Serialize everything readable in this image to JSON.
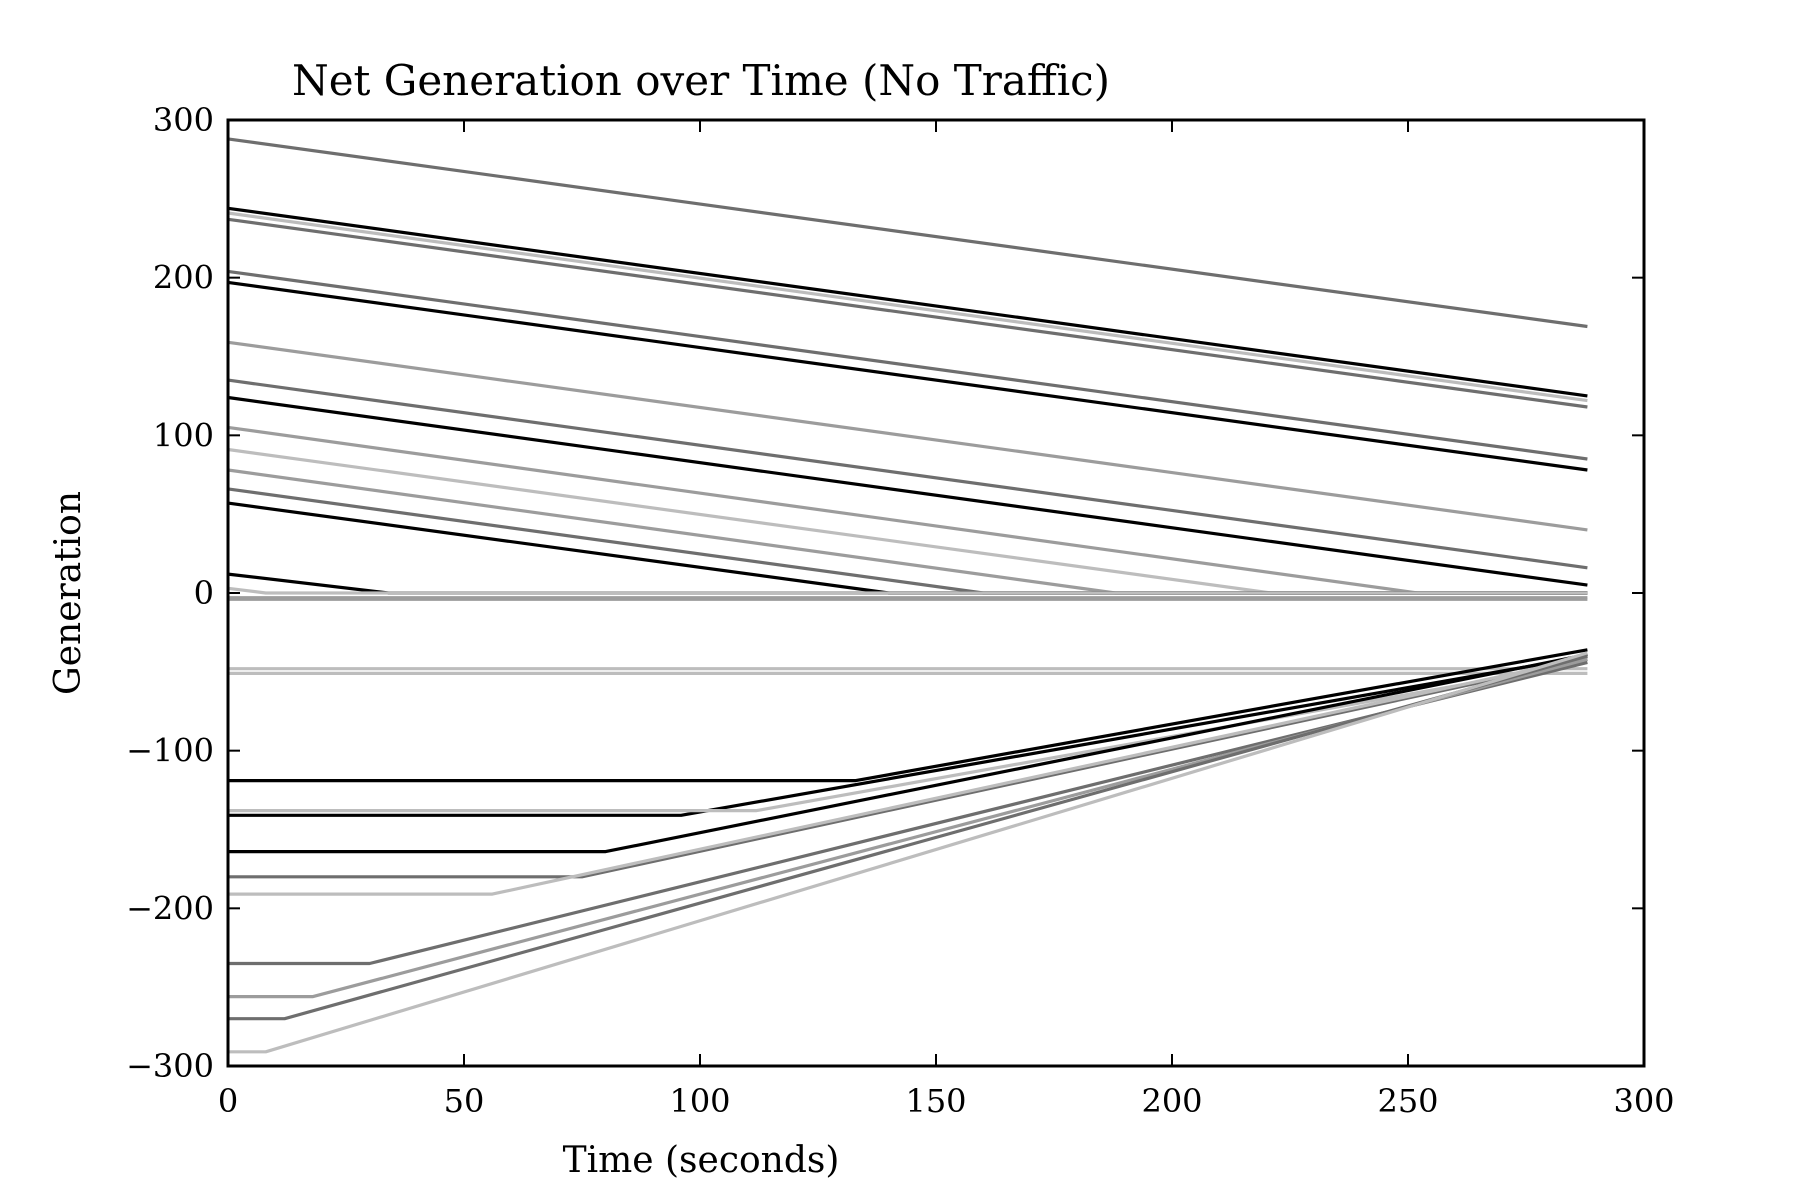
{
  "chart_data": {
    "type": "line",
    "title": "Net Generation over Time (No Traffic)",
    "xlabel": "Time (seconds)",
    "ylabel": "Generation",
    "xlim": [
      0,
      300
    ],
    "ylim": [
      -300,
      300
    ],
    "xticks": [
      0,
      50,
      100,
      150,
      200,
      250,
      300
    ],
    "yticks": [
      -300,
      -200,
      -100,
      0,
      100,
      200,
      300
    ],
    "xtick_labels": [
      "0",
      "50",
      "100",
      "150",
      "200",
      "250",
      "300"
    ],
    "ytick_labels": [
      "−300",
      "−200",
      "−100",
      "0",
      "100",
      "200",
      "300"
    ],
    "grid": false,
    "legend": "none",
    "x_end": 288,
    "palette": {
      "black": "#000000",
      "dark_gray": "#6e6e6e",
      "gray": "#9c9c9c",
      "light_gray": "#bdbdbd"
    },
    "series": [
      {
        "color": "dark_gray",
        "x": [
          0,
          288
        ],
        "y": [
          288,
          169
        ]
      },
      {
        "color": "black",
        "x": [
          0,
          288
        ],
        "y": [
          244,
          125
        ]
      },
      {
        "color": "light_gray",
        "x": [
          0,
          288
        ],
        "y": [
          241,
          122
        ]
      },
      {
        "color": "dark_gray",
        "x": [
          0,
          288
        ],
        "y": [
          237,
          118
        ]
      },
      {
        "color": "dark_gray",
        "x": [
          0,
          288
        ],
        "y": [
          204,
          85
        ]
      },
      {
        "color": "black",
        "x": [
          0,
          288
        ],
        "y": [
          197,
          78
        ]
      },
      {
        "color": "gray",
        "x": [
          0,
          288
        ],
        "y": [
          159,
          40
        ]
      },
      {
        "color": "dark_gray",
        "x": [
          0,
          288
        ],
        "y": [
          135,
          16
        ]
      },
      {
        "color": "black",
        "x": [
          0,
          288
        ],
        "y": [
          124,
          5
        ]
      },
      {
        "color": "gray",
        "x": [
          0,
          252,
          288
        ],
        "y": [
          105,
          0,
          0
        ]
      },
      {
        "color": "light_gray",
        "x": [
          0,
          221,
          288
        ],
        "y": [
          91,
          0,
          0
        ]
      },
      {
        "color": "gray",
        "x": [
          0,
          188,
          288
        ],
        "y": [
          78,
          0,
          0
        ]
      },
      {
        "color": "dark_gray",
        "x": [
          0,
          160,
          288
        ],
        "y": [
          66,
          0,
          0
        ]
      },
      {
        "color": "black",
        "x": [
          0,
          140,
          288
        ],
        "y": [
          57,
          0,
          0
        ]
      },
      {
        "color": "black",
        "x": [
          0,
          34,
          288
        ],
        "y": [
          12,
          0,
          0
        ]
      },
      {
        "color": "light_gray",
        "x": [
          0,
          8,
          288
        ],
        "y": [
          3,
          0,
          0
        ]
      },
      {
        "color": "gray",
        "x": [
          0,
          288
        ],
        "y": [
          -3,
          -3
        ]
      },
      {
        "color": "gray",
        "x": [
          0,
          288
        ],
        "y": [
          -4,
          -4
        ]
      },
      {
        "color": "light_gray",
        "x": [
          0,
          288
        ],
        "y": [
          -48,
          -48
        ]
      },
      {
        "color": "light_gray",
        "x": [
          0,
          288
        ],
        "y": [
          -51,
          -51
        ]
      },
      {
        "color": "black",
        "x": [
          0,
          133,
          288
        ],
        "y": [
          -119,
          -119,
          -36
        ]
      },
      {
        "color": "black",
        "x": [
          0,
          96,
          288
        ],
        "y": [
          -141,
          -141,
          -40
        ]
      },
      {
        "color": "light_gray",
        "x": [
          0,
          112,
          288
        ],
        "y": [
          -138,
          -138,
          -44
        ]
      },
      {
        "color": "black",
        "x": [
          0,
          80,
          288
        ],
        "y": [
          -164,
          -164,
          -39
        ]
      },
      {
        "color": "dark_gray",
        "x": [
          0,
          75,
          288
        ],
        "y": [
          -180,
          -180,
          -42
        ]
      },
      {
        "color": "light_gray",
        "x": [
          0,
          56,
          288
        ],
        "y": [
          -191,
          -191,
          -41
        ]
      },
      {
        "color": "dark_gray",
        "x": [
          0,
          30,
          288
        ],
        "y": [
          -235,
          -235,
          -44
        ]
      },
      {
        "color": "gray",
        "x": [
          0,
          18,
          288
        ],
        "y": [
          -256,
          -256,
          -42
        ]
      },
      {
        "color": "dark_gray",
        "x": [
          0,
          12,
          288
        ],
        "y": [
          -270,
          -270,
          -40
        ]
      },
      {
        "color": "light_gray",
        "x": [
          0,
          8,
          288
        ],
        "y": [
          -291,
          -291,
          -38
        ]
      }
    ]
  }
}
